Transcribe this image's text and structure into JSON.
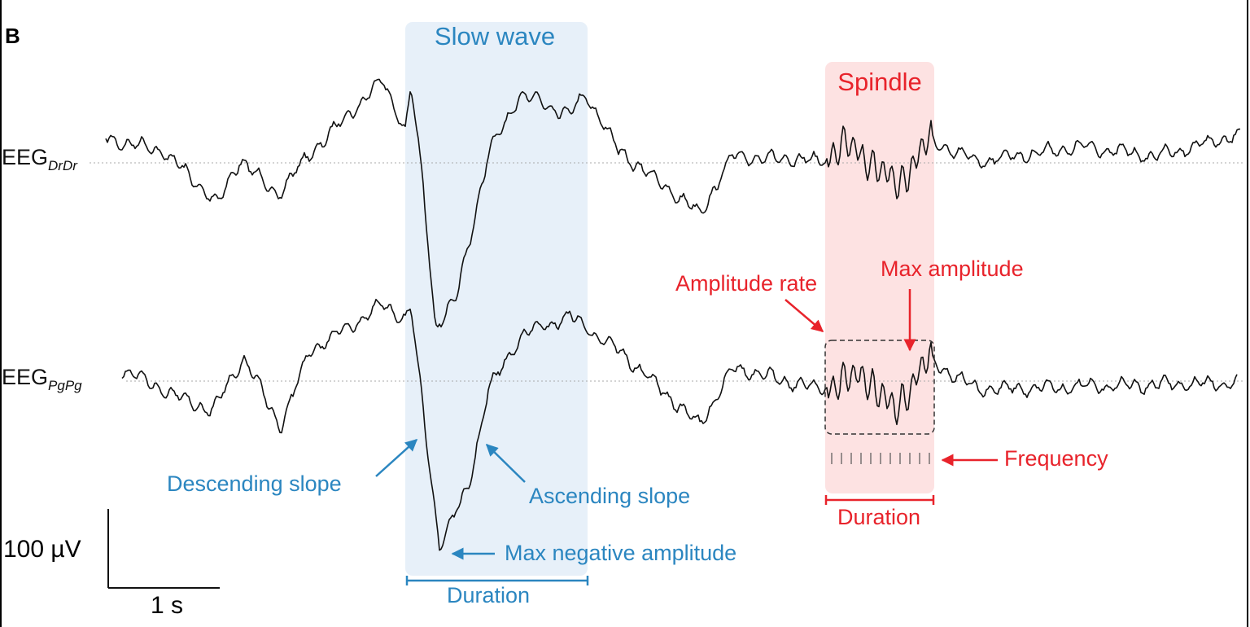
{
  "panel_label": "B",
  "highlights": [
    {
      "label": "Slow wave",
      "duration_label": "Duration"
    },
    {
      "label": "Spindle",
      "duration_label": "Duration"
    }
  ],
  "channels": [
    {
      "name": "EEG",
      "subscript": "DrDr"
    },
    {
      "name": "EEG",
      "subscript": "PgPg"
    }
  ],
  "annotations": {
    "slow_wave": [
      "Descending slope",
      "Ascending slope",
      "Max negative amplitude"
    ],
    "spindle": [
      "Amplitude rate",
      "Max amplitude",
      "Frequency"
    ]
  },
  "scale_bar": {
    "amplitude": "100 µV",
    "time": "1 s"
  }
}
